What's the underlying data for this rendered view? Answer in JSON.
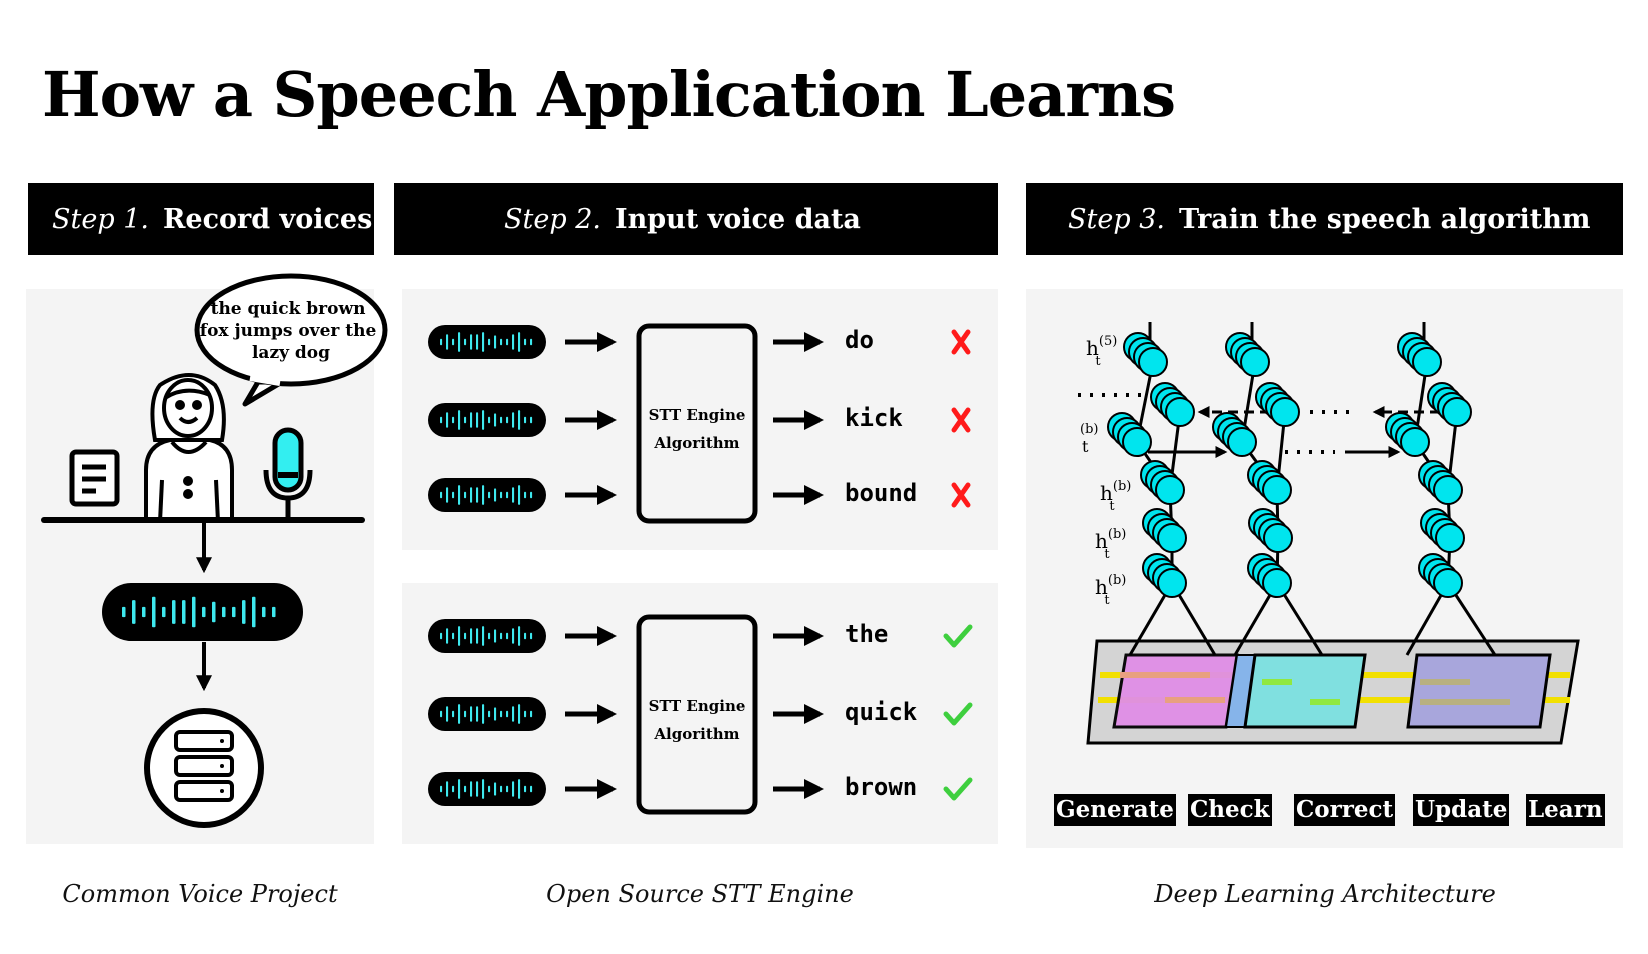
{
  "title": "How a Speech Application Learns",
  "steps": [
    {
      "prefix": "Step 1.",
      "label": "Record voices"
    },
    {
      "prefix": "Step 2.",
      "label": "Input voice data"
    },
    {
      "prefix": "Step 3.",
      "label": "Train the speech algorithm"
    }
  ],
  "step1": {
    "bubble_lines": [
      "the quick brown",
      "fox jumps over the",
      "lazy dog"
    ],
    "caption": "Common Voice Project"
  },
  "step2": {
    "engine_lines": [
      "STT Engine",
      "Algorithm"
    ],
    "groups": [
      {
        "results": [
          {
            "word": "do",
            "status": "wrong"
          },
          {
            "word": "kick",
            "status": "wrong"
          },
          {
            "word": "bound",
            "status": "wrong"
          }
        ]
      },
      {
        "results": [
          {
            "word": "the",
            "status": "correct"
          },
          {
            "word": "quick",
            "status": "correct"
          },
          {
            "word": "brown",
            "status": "correct"
          }
        ]
      }
    ],
    "caption": "Open Source STT Engine"
  },
  "step3": {
    "layer_labels": {
      "top": "h",
      "sub": "t",
      "sup_top": "(5)",
      "sup": "(b)"
    },
    "buttons": [
      "Generate",
      "Check",
      "Correct",
      "Update",
      "Learn"
    ],
    "caption": "Deep Learning Architecture"
  },
  "colors": {
    "accent": "#00e5ee",
    "wrong": "#ff1a1a",
    "correct": "#3ecf3e",
    "panel": "#f4f4f4"
  },
  "icons": [
    "document-icon",
    "person-icon",
    "microphone-icon",
    "waveform-icon",
    "database-server-icon",
    "arrow-right-icon",
    "cross-icon",
    "checkmark-icon"
  ]
}
